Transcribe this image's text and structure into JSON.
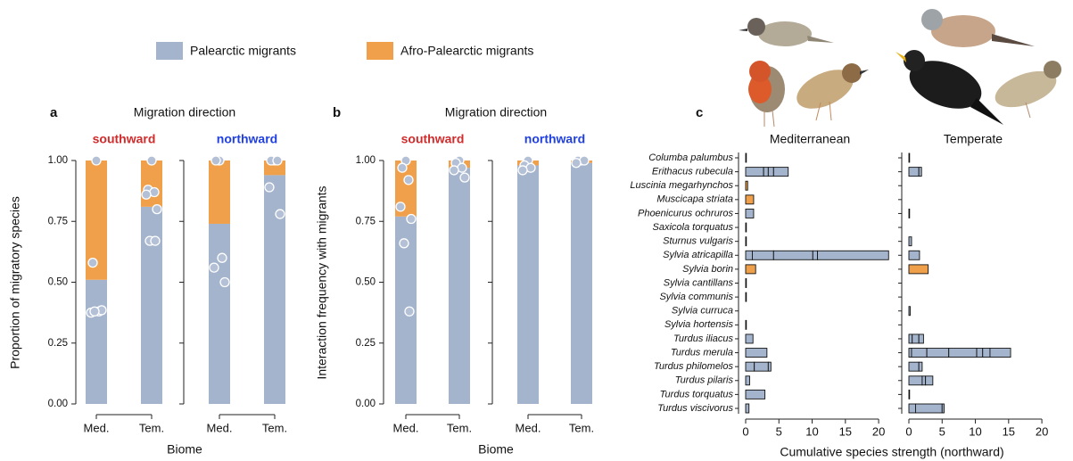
{
  "chart_data": [
    {
      "type": "stacked_bar",
      "panel_label": "a",
      "title": "Migration direction",
      "ylabel": "Proportion of migratory species",
      "xlabel": "Biome",
      "categories": [
        "Med.",
        "Tem."
      ],
      "ylim": [
        0,
        1
      ],
      "yticks": [
        {
          "value": 0,
          "label": "0.00"
        },
        {
          "value": 0.25,
          "label": "0.25"
        },
        {
          "value": 0.5,
          "label": "0.50"
        },
        {
          "value": 0.75,
          "label": "0.75"
        },
        {
          "value": 1,
          "label": "1.00"
        }
      ],
      "facets": [
        {
          "title": "southward",
          "title_color": "#d22b2b",
          "series": [
            {
              "name": "Palearctic migrants",
              "color": "#a3b4cc",
              "values": [
                0.51,
                0.81
              ]
            },
            {
              "name": "Afro-Palearctic migrants",
              "color": "#f0a04b",
              "values": [
                0.49,
                0.19
              ]
            }
          ],
          "points": [
            [
              1.0,
              0.58,
              0.38,
              0.375,
              0.385,
              0.38
            ],
            [
              1.0,
              0.88,
              0.87,
              0.86,
              0.8,
              0.67,
              0.67
            ]
          ]
        },
        {
          "title": "northward",
          "title_color": "#2040e0",
          "series": [
            {
              "name": "Palearctic migrants",
              "color": "#a3b4cc",
              "values": [
                0.74,
                0.94
              ]
            },
            {
              "name": "Afro-Palearctic migrants",
              "color": "#f0a04b",
              "values": [
                0.26,
                0.06
              ]
            }
          ],
          "points": [
            [
              1.0,
              1.0,
              0.6,
              0.56,
              0.5
            ],
            [
              1.0,
              1.0,
              1.0,
              0.89,
              0.78
            ]
          ]
        }
      ]
    },
    {
      "type": "stacked_bar",
      "panel_label": "b",
      "title": "Migration direction",
      "ylabel": "Interaction frequency with migrants",
      "xlabel": "Biome",
      "categories": [
        "Med.",
        "Tem."
      ],
      "ylim": [
        0,
        1
      ],
      "yticks": [
        {
          "value": 0,
          "label": "0.00"
        },
        {
          "value": 0.25,
          "label": "0.25"
        },
        {
          "value": 0.5,
          "label": "0.50"
        },
        {
          "value": 0.75,
          "label": "0.75"
        },
        {
          "value": 1,
          "label": "1.00"
        }
      ],
      "facets": [
        {
          "title": "southward",
          "title_color": "#d22b2b",
          "series": [
            {
              "name": "Palearctic migrants",
              "color": "#a3b4cc",
              "values": [
                0.77,
                0.97
              ]
            },
            {
              "name": "Afro-Palearctic migrants",
              "color": "#f0a04b",
              "values": [
                0.23,
                0.03
              ]
            }
          ],
          "points": [
            [
              1.0,
              0.97,
              0.92,
              0.81,
              0.76,
              0.66,
              0.38
            ],
            [
              1.0,
              0.99,
              0.97,
              0.96,
              0.93
            ]
          ]
        },
        {
          "title": "northward",
          "title_color": "#2040e0",
          "series": [
            {
              "name": "Palearctic migrants",
              "color": "#a3b4cc",
              "values": [
                0.98,
                0.99
              ]
            },
            {
              "name": "Afro-Palearctic migrants",
              "color": "#f0a04b",
              "values": [
                0.02,
                0.01
              ]
            }
          ],
          "points": [
            [
              1.0,
              0.98,
              0.97,
              0.96
            ],
            [
              1.0,
              1.0,
              1.0,
              0.99
            ]
          ]
        }
      ]
    },
    {
      "type": "segmented_hbar",
      "panel_label": "c",
      "xlabel": "Cumulative species strength (northward)",
      "categories": [
        "Columba palumbus",
        "Erithacus rubecula",
        "Luscinia megarhynchos",
        "Muscicapa striata",
        "Phoenicurus ochruros",
        "Saxicola torquatus",
        "Sturnus vulgaris",
        "Sylvia atricapilla",
        "Sylvia borin",
        "Sylvia cantillans",
        "Sylvia communis",
        "Sylvia curruca",
        "Sylvia hortensis",
        "Turdus iliacus",
        "Turdus merula",
        "Turdus philomelos",
        "Turdus pilaris",
        "Turdus torquatus",
        "Turdus viscivorus"
      ],
      "colors": [
        "#a3b4cc",
        "#a3b4cc",
        "#f0a04b",
        "#f0a04b",
        "#a3b4cc",
        "#a3b4cc",
        "#a3b4cc",
        "#a3b4cc",
        "#f0a04b",
        "#f0a04b",
        "#f0a04b",
        "#a3b4cc",
        "#a3b4cc",
        "#a3b4cc",
        "#a3b4cc",
        "#a3b4cc",
        "#a3b4cc",
        "#a3b4cc",
        "#a3b4cc"
      ],
      "xlim": [
        0,
        22
      ],
      "xticks": [
        0,
        5,
        10,
        15,
        20
      ],
      "facets": [
        {
          "title": "Mediterranean",
          "segments": [
            [
              0.05
            ],
            [
              2.7,
              0.7,
              0.8,
              2.2
            ],
            [
              0.3
            ],
            [
              1.2
            ],
            [
              1.2
            ],
            [
              0.08
            ],
            [
              0.08
            ],
            [
              1.0,
              3.2,
              5.9,
              0.7,
              10.7
            ],
            [
              1.5
            ],
            [
              0.08
            ],
            [
              0.08
            ],
            [],
            [
              0.08
            ],
            [
              1.1
            ],
            [
              3.2
            ],
            [
              1.3,
              2.1,
              0.4
            ],
            [
              0.6
            ],
            [
              2.9
            ],
            [
              0.5
            ]
          ]
        },
        {
          "title": "Temperate",
          "segments": [
            [
              0.08
            ],
            [
              1.5,
              0.4
            ],
            [],
            [],
            [
              0.08
            ],
            [],
            [
              0.4
            ],
            [
              1.6
            ],
            [
              2.9
            ],
            [],
            [],
            [
              0.2
            ],
            [],
            [
              0.5,
              1.0,
              0.7
            ],
            [
              0.4,
              2.3,
              3.3,
              4.2,
              0.9,
              1.1,
              3.1
            ],
            [
              1.5,
              0.5
            ],
            [
              2.0,
              0.5,
              1.1
            ],
            [
              0.08
            ],
            [
              1.0,
              4.0,
              0.3
            ]
          ]
        }
      ]
    }
  ]
}
